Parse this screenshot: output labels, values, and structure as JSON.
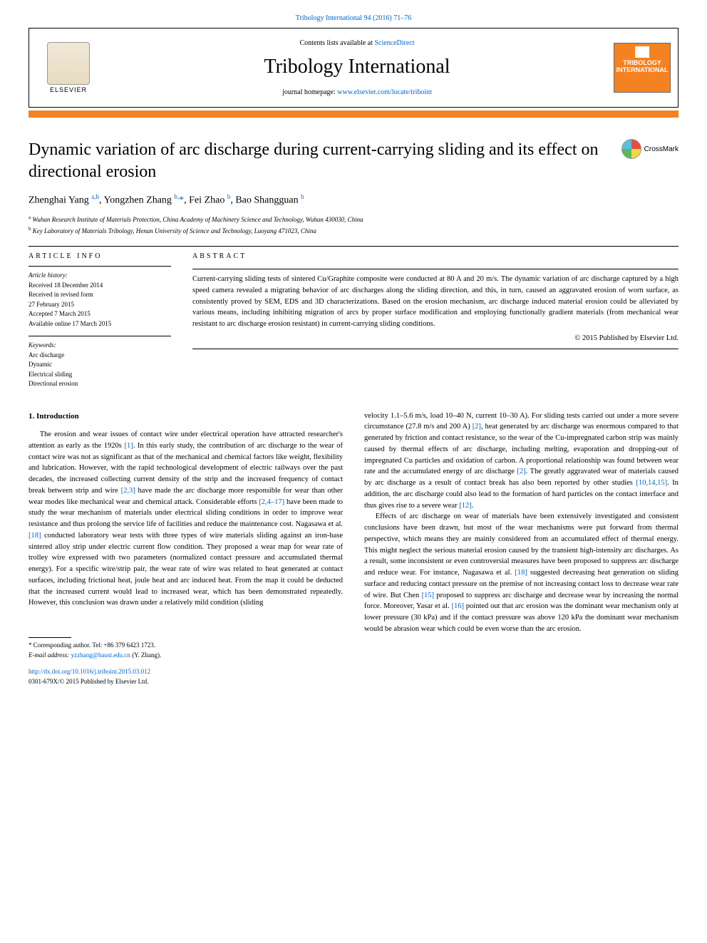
{
  "header": {
    "citation": "Tribology International 94 (2016) 71–76",
    "contents_prefix": "Contents lists available at ",
    "contents_link": "ScienceDirect",
    "journal_name": "Tribology International",
    "homepage_prefix": "journal homepage: ",
    "homepage_url": "www.elsevier.com/locate/triboint",
    "elsevier_label": "ELSEVIER",
    "badge_line1": "TRIBOLOGY",
    "badge_line2": "INTERNATIONAL"
  },
  "crossmark_label": "CrossMark",
  "title": "Dynamic variation of arc discharge during current-carrying sliding and its effect on directional erosion",
  "authors_html": "Zhenghai Yang <sup>a,b</sup>, Yongzhen Zhang <sup>b,</sup><span class='star'>*</span>, Fei Zhao <sup>b</sup>, Bao Shangguan <sup>b</sup>",
  "affiliations": [
    {
      "sup": "a",
      "text": "Wuhan Research Institute of Materials Protection, China Academy of Machinery Science and Technology, Wuhan 430030, China"
    },
    {
      "sup": "b",
      "text": "Key Laboratory of Materials Tribology, Henan University of Science and Technology, Luoyang 471023, China"
    }
  ],
  "meta": {
    "article_info_heading": "ARTICLE INFO",
    "history_label": "Article history:",
    "history": [
      "Received 18 December 2014",
      "Received in revised form",
      "27 February 2015",
      "Accepted 7 March 2015",
      "Available online 17 March 2015"
    ],
    "keywords_label": "Keywords:",
    "keywords": [
      "Arc discharge",
      "Dynamic",
      "Electrical sliding",
      "Directional erosion"
    ]
  },
  "abstract": {
    "heading": "ABSTRACT",
    "text": "Current-carrying sliding tests of sintered Cu/Graphite composite were conducted at 80 A and 20 m/s. The dynamic variation of arc discharge captured by a high speed camera revealed a migrating behavior of arc discharges along the sliding direction, and this, in turn, caused an aggravated erosion of worn surface, as consistently proved by SEM, EDS and 3D characterizations. Based on the erosion mechanism, arc discharge induced material erosion could be alleviated by various means, including inhibiting migration of arcs by proper surface modification and employing functionally gradient materials (from mechanical wear resistant to arc discharge erosion resistant) in current-carrying sliding conditions.",
    "copyright": "© 2015 Published by Elsevier Ltd."
  },
  "body": {
    "section_heading": "1.  Introduction",
    "col1": [
      "The erosion and wear issues of contact wire under electrical operation have attracted researcher's attention as early as the 1920s <span class='cite'>[1]</span>. In this early study, the contribution of arc discharge to the wear of contact wire was not as significant as that of the mechanical and chemical factors like weight, flexibility and lubrication. However, with the rapid technological development of electric railways over the past decades, the increased collecting current density of the strip and the increased frequency of contact break between strip and wire <span class='cite'>[2,3]</span> have made the arc discharge more responsible for wear than other wear modes like mechanical wear and chemical attack. Considerable efforts <span class='cite'>[2,4–17]</span> have been made to study the wear mechanism of materials under electrical sliding conditions in order to improve wear resistance and thus prolong the service life of facilities and reduce the maintenance cost. Nagasawa et al. <span class='cite'>[18]</span> conducted laboratory wear tests with three types of wire materials sliding against an iron-base sintered alloy strip under electric current flow condition. They proposed a wear map for wear rate of trolley wire expressed with two parameters (normalized contact pressure and accumulated thermal energy). For a specific wire/strip pair, the wear rate of wire was related to heat generated at contact surfaces, including frictional heat, joule heat and arc induced heat. From the map it could be deducted that the increased current would lead to increased wear, which has been demonstrated repeatedly. However, this conclusion was drawn under a relatively mild condition (sliding"
    ],
    "col2": [
      "velocity 1.1–5.6 m/s, load 10–40 N, current 10–30 A). For sliding tests carried out under a more severe circumstance (27.8 m/s and 200 A) <span class='cite'>[2]</span>, heat generated by arc discharge was enormous compared to that generated by friction and contact resistance, so the wear of the Cu-impregnated carbon strip was mainly caused by thermal effects of arc discharge, including melting, evaporation and dropping-out of impregnated Cu particles and oxidation of carbon. A proportional relationship was found between wear rate and the accumulated energy of arc discharge <span class='cite'>[2]</span>. The greatly aggravated wear of materials caused by arc discharge as a result of contact break has also been reported by other studies <span class='cite'>[10,14,15]</span>. In addition, the arc discharge could also lead to the formation of hard particles on the contact interface and thus gives rise to a severe wear <span class='cite'>[12]</span>.",
      "Effects of arc discharge on wear of materials have been extensively investigated and consistent conclusions have been drawn, but most of the wear mechanisms were put forward from thermal perspective, which means they are mainly considered from an accumulated effect of thermal energy. This might neglect the serious material erosion caused by the transient high-intensity arc discharges. As a result, some inconsistent or even controversial measures have been proposed to suppress arc discharge and reduce wear. For instance, Nagasawa et al. <span class='cite'>[18]</span> suggested decreasing heat generation on sliding surface and reducing contact pressure on the premise of not increasing contact loss to decrease wear rate of wire. But Chen <span class='cite'>[15]</span> proposed to suppress arc discharge and decrease wear by increasing the normal force. Moreover, Yasar et al. <span class='cite'>[16]</span> pointed out that arc erosion was the dominant wear mechanism only at lower pressure (30 kPa) and if the contact pressure was above 120 kPa the dominant wear mechanism would be abrasion wear which could be even worse than the arc erosion."
    ]
  },
  "footer": {
    "corr_prefix": "* Corresponding author. Tel: ",
    "corr_tel": "+86 379 6423 1723.",
    "email_label": "E-mail address: ",
    "email": "yzzhang@haust.edu.cn",
    "email_suffix": " (Y. Zhang).",
    "doi": "http://dx.doi.org/10.1016/j.triboint.2015.03.012",
    "issn_line": "0301-679X/© 2015 Published by Elsevier Ltd."
  },
  "colors": {
    "link": "#0066cc",
    "accent": "#f58220",
    "text": "#000000",
    "bg": "#ffffff"
  }
}
